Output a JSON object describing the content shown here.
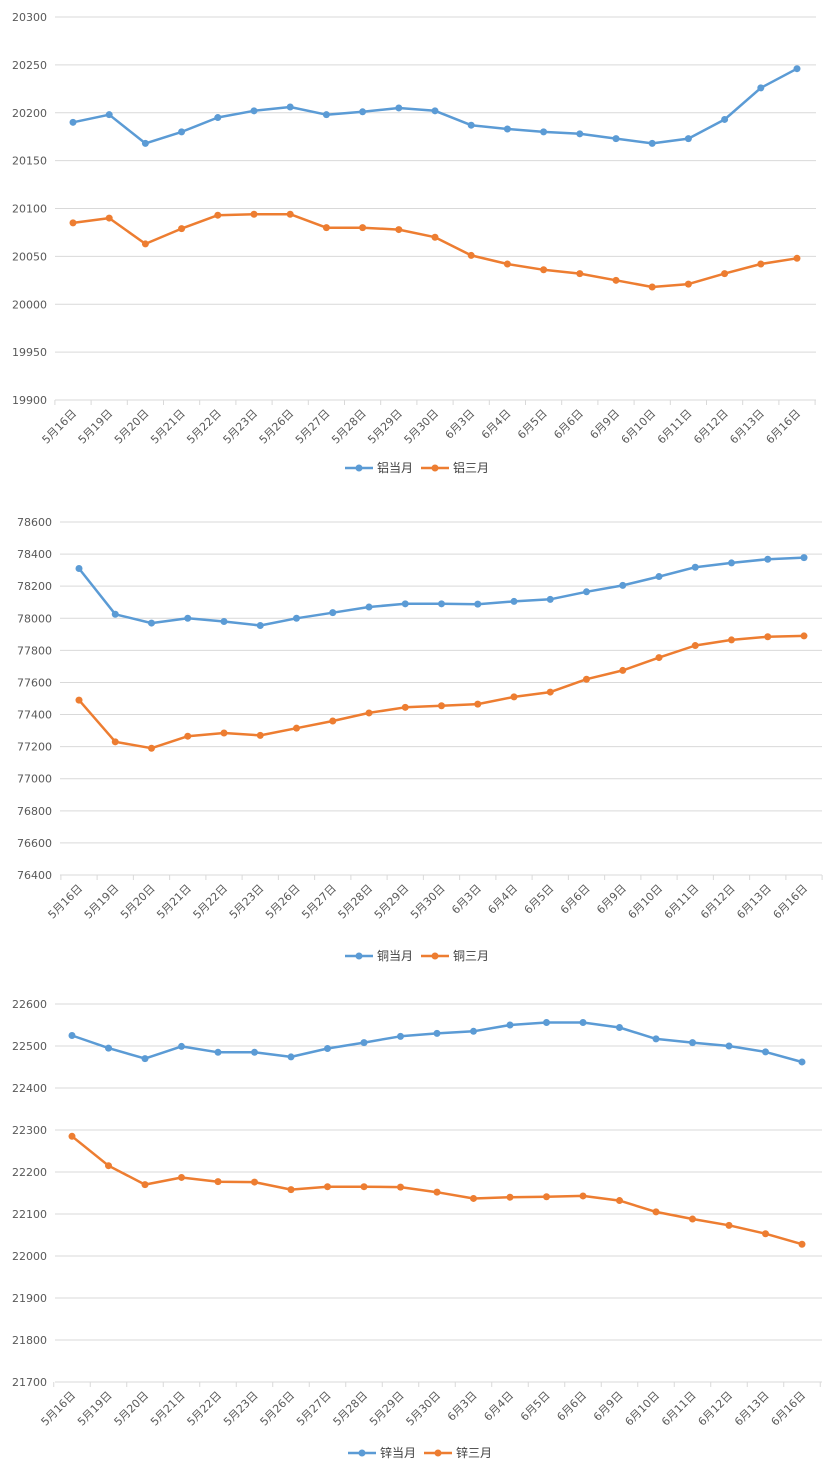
{
  "colors": {
    "series1": "#5b9bd5",
    "series2": "#ed7d31",
    "grid": "#d9d9d9",
    "text": "#595959"
  },
  "chart_data": [
    {
      "type": "line",
      "categories": [
        "5月16日",
        "5月19日",
        "5月20日",
        "5月21日",
        "5月22日",
        "5月23日",
        "5月26日",
        "5月27日",
        "5月28日",
        "5月29日",
        "5月30日",
        "6月3日",
        "6月4日",
        "6月5日",
        "6月6日",
        "6月9日",
        "6月10日",
        "6月11日",
        "6月12日",
        "6月13日",
        "6月16日"
      ],
      "ylim": [
        19900,
        20300
      ],
      "yticks": [
        19900,
        19950,
        20000,
        20050,
        20100,
        20150,
        20200,
        20250,
        20300
      ],
      "grid": true,
      "legend": "bottom",
      "series": [
        {
          "name": "铝当月",
          "values": [
            20190,
            20198,
            20168,
            20180,
            20195,
            20202,
            20206,
            20198,
            20201,
            20205,
            20202,
            20187,
            20183,
            20180,
            20178,
            20173,
            20168,
            20173,
            20193,
            20226,
            20246
          ]
        },
        {
          "name": "铝三月",
          "values": [
            20085,
            20090,
            20063,
            20079,
            20093,
            20094,
            20094,
            20080,
            20080,
            20078,
            20070,
            20051,
            20042,
            20036,
            20032,
            20025,
            20018,
            20021,
            20032,
            20042,
            20048
          ]
        }
      ]
    },
    {
      "type": "line",
      "categories": [
        "5月16日",
        "5月19日",
        "5月20日",
        "5月21日",
        "5月22日",
        "5月23日",
        "5月26日",
        "5月27日",
        "5月28日",
        "5月29日",
        "5月30日",
        "6月3日",
        "6月4日",
        "6月5日",
        "6月6日",
        "6月9日",
        "6月10日",
        "6月11日",
        "6月12日",
        "6月13日",
        "6月16日"
      ],
      "ylim": [
        76400,
        78600
      ],
      "yticks": [
        76400,
        76600,
        76800,
        77000,
        77200,
        77400,
        77600,
        77800,
        78000,
        78200,
        78400,
        78600
      ],
      "grid": true,
      "legend": "bottom",
      "series": [
        {
          "name": "铜当月",
          "values": [
            78310,
            78025,
            77970,
            78000,
            77980,
            77955,
            78000,
            78035,
            78070,
            78090,
            78090,
            78088,
            78105,
            78118,
            78165,
            78205,
            78260,
            78318,
            78345,
            78368,
            78378
          ]
        },
        {
          "name": "铜三月",
          "values": [
            77490,
            77230,
            77190,
            77265,
            77285,
            77270,
            77315,
            77360,
            77410,
            77445,
            77455,
            77465,
            77510,
            77540,
            77620,
            77675,
            77755,
            77830,
            77865,
            77885,
            77890
          ]
        }
      ]
    },
    {
      "type": "line",
      "categories": [
        "5月16日",
        "5月19日",
        "5月20日",
        "5月21日",
        "5月22日",
        "5月23日",
        "5月26日",
        "5月27日",
        "5月28日",
        "5月29日",
        "5月30日",
        "6月3日",
        "6月4日",
        "6月5日",
        "6月6日",
        "6月9日",
        "6月10日",
        "6月11日",
        "6月12日",
        "6月13日",
        "6月16日"
      ],
      "ylim": [
        21700,
        22600
      ],
      "yticks": [
        21700,
        21800,
        21900,
        22000,
        22100,
        22200,
        22300,
        22400,
        22500,
        22600
      ],
      "grid": true,
      "legend": "bottom",
      "series": [
        {
          "name": "锌当月",
          "values": [
            22525,
            22495,
            22470,
            22499,
            22485,
            22485,
            22474,
            22494,
            22508,
            22523,
            22530,
            22535,
            22550,
            22556,
            22556,
            22544,
            22517,
            22508,
            22500,
            22486,
            22462
          ]
        },
        {
          "name": "锌三月",
          "values": [
            22285,
            22215,
            22170,
            22187,
            22177,
            22176,
            22158,
            22165,
            22165,
            22164,
            22152,
            22137,
            22140,
            22141,
            22143,
            22132,
            22105,
            22088,
            22073,
            22053,
            22028
          ]
        }
      ]
    }
  ]
}
